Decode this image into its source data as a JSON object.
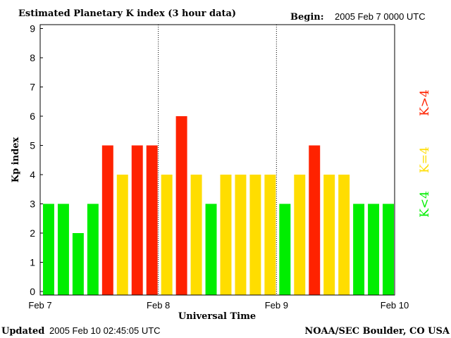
{
  "chart_data": {
    "type": "bar",
    "title": "Estimated Planetary K index (3 hour data)",
    "begin_label": "Begin:",
    "begin_value": "2005 Feb 7 0000 UTC",
    "xlabel": "Universal Time",
    "ylabel": "Kp index",
    "ylim": [
      0,
      9
    ],
    "yticks": [
      "0",
      "1",
      "2",
      "3",
      "4",
      "5",
      "6",
      "7",
      "8",
      "9"
    ],
    "xticks": [
      "Feb 7",
      "Feb 8",
      "Feb 9",
      "Feb 10"
    ],
    "values": [
      3,
      3,
      2,
      3,
      5,
      4,
      5,
      5,
      4,
      6,
      4,
      3,
      4,
      4,
      4,
      4,
      3,
      4,
      5,
      4,
      4,
      3,
      3,
      3
    ],
    "colors": {
      "low": "#00ee00",
      "mid": "#ffdd00",
      "high": "#ff2200"
    },
    "legend": [
      {
        "label": "K>4",
        "color": "#ff2200"
      },
      {
        "label": "K=4",
        "color": "#ffdd00"
      },
      {
        "label": "K<4",
        "color": "#00ee00"
      }
    ]
  },
  "footer": {
    "updated_label": "Updated",
    "updated_value": "2005 Feb 10 02:45:05 UTC",
    "source": "NOAA/SEC Boulder, CO USA"
  }
}
